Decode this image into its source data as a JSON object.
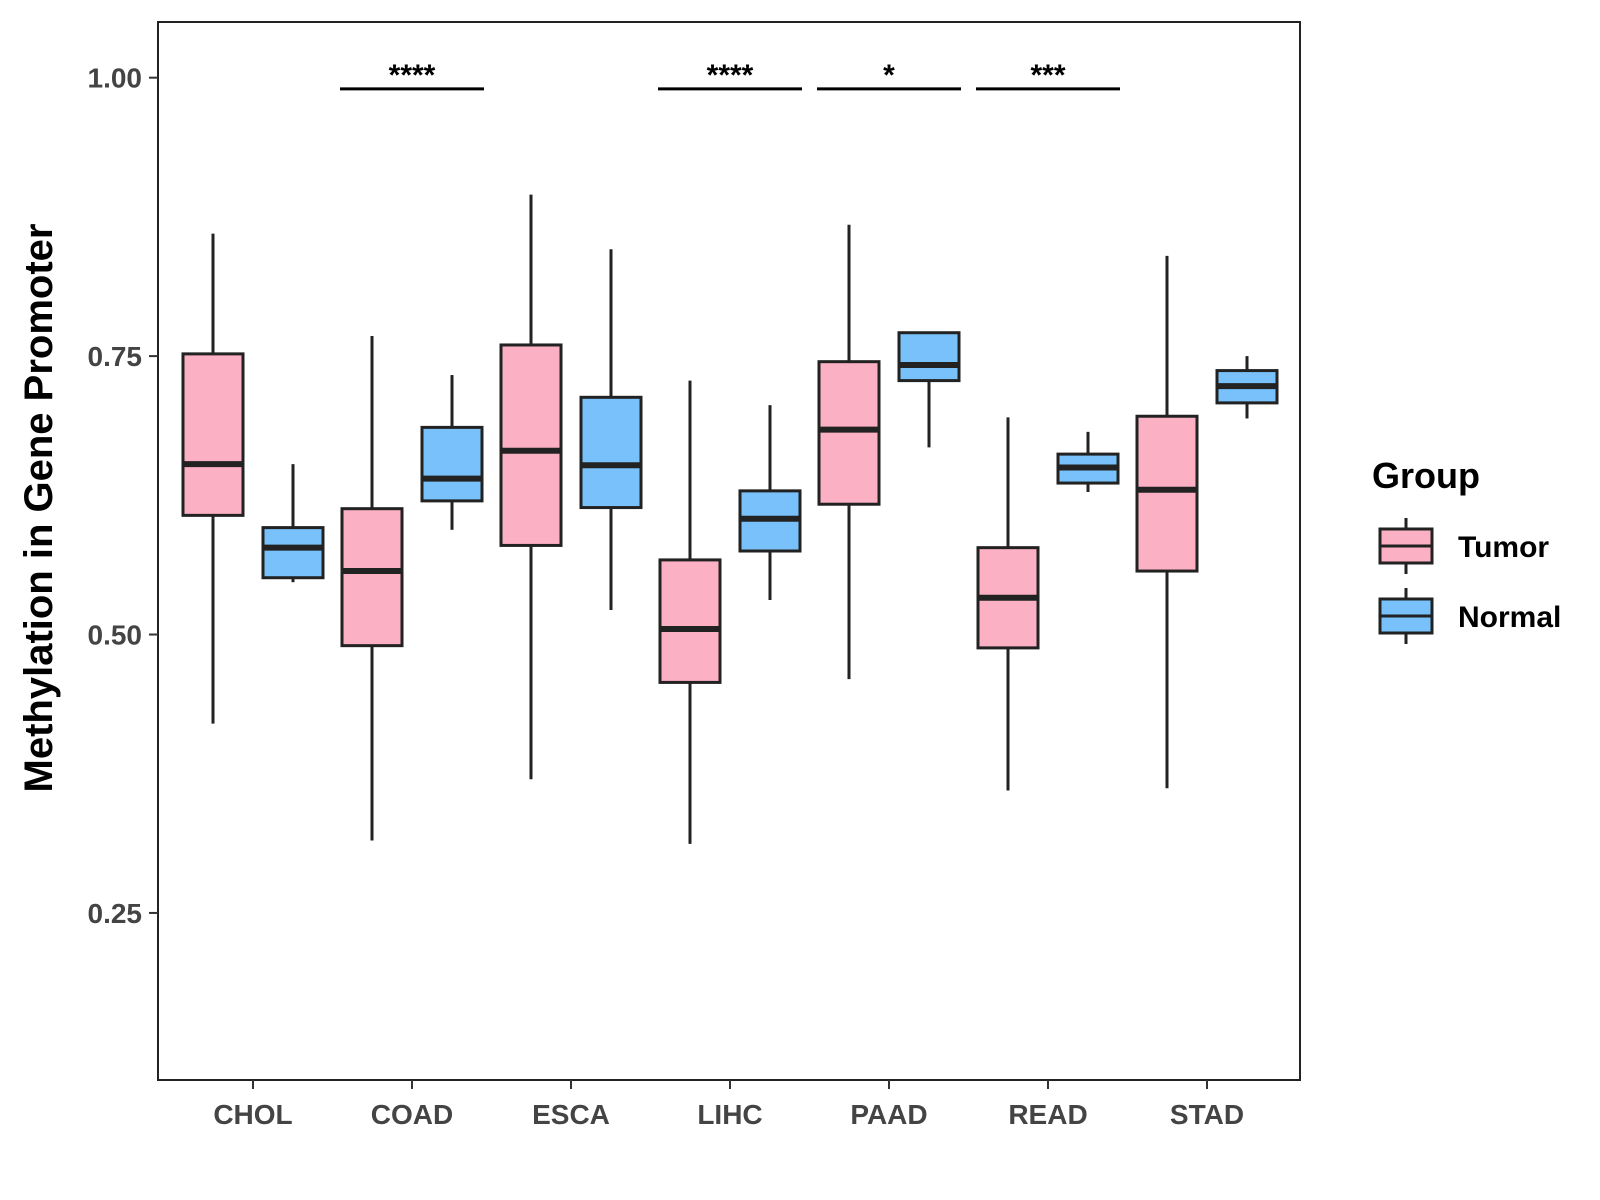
{
  "chart_data": {
    "type": "boxplot",
    "title": "",
    "xlabel": "",
    "ylabel": "Methylation in Gene Promoter",
    "ylim": [
      0.1,
      1.05
    ],
    "yticks": [
      0.25,
      0.5,
      0.75,
      1.0
    ],
    "ytick_labels": [
      "0.25",
      "0.50",
      "0.75",
      "1.00"
    ],
    "categories": [
      "CHOL",
      "COAD",
      "ESCA",
      "LIHC",
      "PAAD",
      "READ",
      "STAD"
    ],
    "series": [
      {
        "name": "Tumor",
        "color": "#FBB0C3",
        "boxes": [
          {
            "min": 0.42,
            "q1": 0.607,
            "median": 0.653,
            "q3": 0.752,
            "max": 0.86
          },
          {
            "min": 0.315,
            "q1": 0.49,
            "median": 0.557,
            "q3": 0.613,
            "max": 0.768
          },
          {
            "min": 0.37,
            "q1": 0.58,
            "median": 0.665,
            "q3": 0.76,
            "max": 0.895
          },
          {
            "min": 0.312,
            "q1": 0.457,
            "median": 0.505,
            "q3": 0.567,
            "max": 0.728
          },
          {
            "min": 0.46,
            "q1": 0.617,
            "median": 0.684,
            "q3": 0.745,
            "max": 0.868
          },
          {
            "min": 0.36,
            "q1": 0.488,
            "median": 0.533,
            "q3": 0.578,
            "max": 0.695
          },
          {
            "min": 0.362,
            "q1": 0.557,
            "median": 0.63,
            "q3": 0.696,
            "max": 0.84
          }
        ]
      },
      {
        "name": "Normal",
        "color": "#78C1FA",
        "boxes": [
          {
            "min": 0.547,
            "q1": 0.551,
            "median": 0.578,
            "q3": 0.596,
            "max": 0.653
          },
          {
            "min": 0.594,
            "q1": 0.62,
            "median": 0.64,
            "q3": 0.686,
            "max": 0.733
          },
          {
            "min": 0.522,
            "q1": 0.614,
            "median": 0.652,
            "q3": 0.713,
            "max": 0.846
          },
          {
            "min": 0.531,
            "q1": 0.575,
            "median": 0.604,
            "q3": 0.629,
            "max": 0.706
          },
          {
            "min": 0.668,
            "q1": 0.728,
            "median": 0.742,
            "q3": 0.771,
            "max": 0.771
          },
          {
            "min": 0.628,
            "q1": 0.636,
            "median": 0.65,
            "q3": 0.662,
            "max": 0.682
          },
          {
            "min": 0.694,
            "q1": 0.708,
            "median": 0.723,
            "q3": 0.737,
            "max": 0.75
          }
        ]
      }
    ],
    "significance": [
      {
        "category": "COAD",
        "label": "****",
        "y": 0.99
      },
      {
        "category": "LIHC",
        "label": "****",
        "y": 0.99
      },
      {
        "category": "PAAD",
        "label": "*",
        "y": 0.99
      },
      {
        "category": "READ",
        "label": "***",
        "y": 0.99
      }
    ],
    "legend": {
      "title": "Group",
      "position": "right",
      "items": [
        "Tumor",
        "Normal"
      ]
    }
  }
}
